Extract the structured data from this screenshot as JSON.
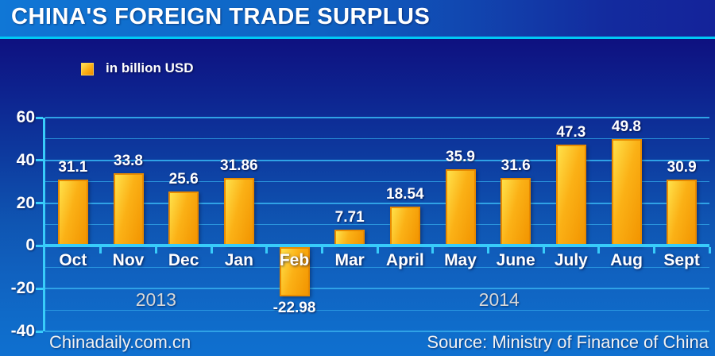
{
  "header": {
    "title": "CHINA'S FOREIGN TRADE SURPLUS"
  },
  "legend": {
    "label": "in billion USD"
  },
  "footer": {
    "left": "Chinadaily.com.cn",
    "right": "Source: Ministry of Finance of China"
  },
  "chart_data": {
    "type": "bar",
    "title": "CHINA'S FOREIGN TRADE SURPLUS",
    "unit_label": "in billion USD",
    "categories": [
      "Oct",
      "Nov",
      "Dec",
      "Jan",
      "Feb",
      "Mar",
      "April",
      "May",
      "June",
      "July",
      "Aug",
      "Sept"
    ],
    "values": [
      31.1,
      33.8,
      25.6,
      31.86,
      -22.98,
      7.71,
      18.54,
      35.9,
      31.6,
      47.3,
      49.8,
      30.9
    ],
    "value_labels": [
      "31.1",
      "33.8",
      "25.6",
      "31.86",
      "-22.98",
      "7.71",
      "18.54",
      "35.9",
      "31.6",
      "47.3",
      "49.8",
      "30.9"
    ],
    "ylim": [
      -40,
      60
    ],
    "yticks_labeled": [
      60,
      40,
      20,
      0,
      -20,
      -40
    ],
    "grid_interval": 10,
    "grid": "on",
    "legend_position": "top-left",
    "year_groups": [
      {
        "label": "2013",
        "center_index": 1.5
      },
      {
        "label": "2014",
        "center_index": 7.7
      }
    ],
    "colors": {
      "bar_fill_light": "#FFE14A",
      "bar_fill_dark": "#F29400",
      "bar_border": "#E88A00",
      "grid_line": "#2FA2E6",
      "axis_line": "#38CCFA",
      "zero_line": "#38CCFA",
      "background_top": "#0E1180",
      "background_bottom": "#0F70D0",
      "header_left": "#1077D6",
      "header_right": "#14239A",
      "divider": "#00C8F5",
      "label_text": "#FFFFFF",
      "year_text": "#D8D8D8"
    }
  }
}
